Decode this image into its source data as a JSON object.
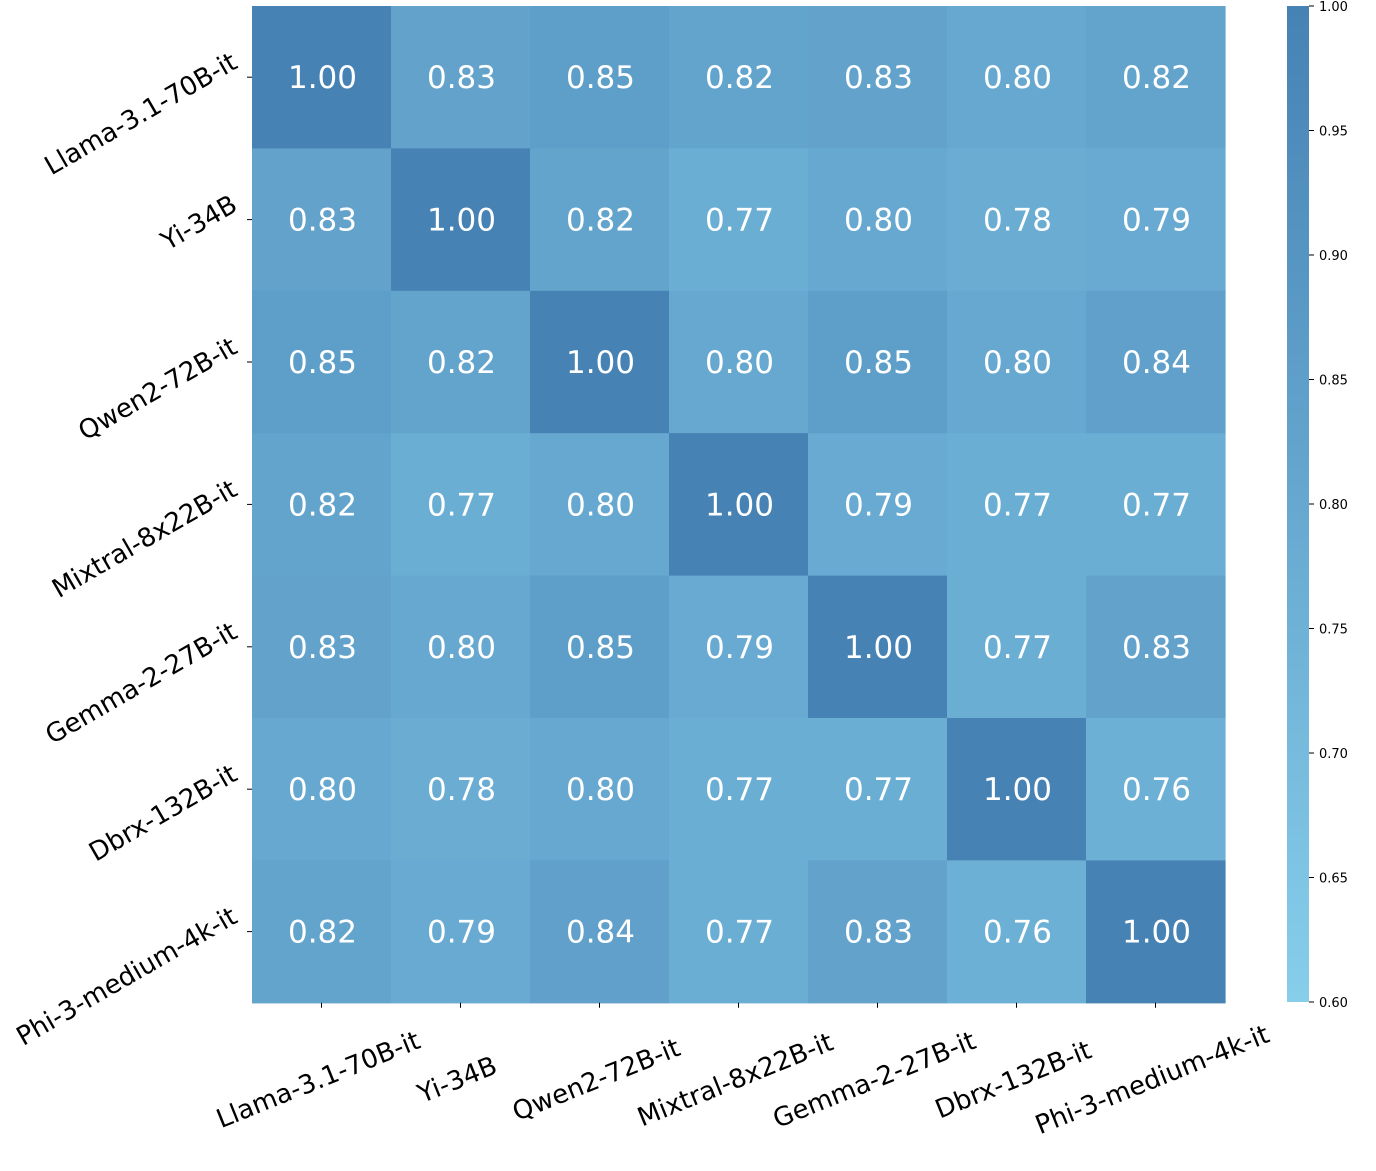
{
  "chart_data": {
    "type": "heatmap",
    "title": "",
    "xlabel": "",
    "ylabel": "",
    "row_labels": [
      "Llama-3.1-70B-it",
      "Yi-34B",
      "Qwen2-72B-it",
      "Mixtral-8x22B-it",
      "Gemma-2-27B-it",
      "Dbrx-132B-it",
      "Phi-3-medium-4k-it"
    ],
    "col_labels": [
      "Llama-3.1-70B-it",
      "Yi-34B",
      "Qwen2-72B-it",
      "Mixtral-8x22B-it",
      "Gemma-2-27B-it",
      "Dbrx-132B-it",
      "Phi-3-medium-4k-it"
    ],
    "values": [
      [
        1.0,
        0.83,
        0.85,
        0.82,
        0.83,
        0.8,
        0.82
      ],
      [
        0.83,
        1.0,
        0.82,
        0.77,
        0.8,
        0.78,
        0.79
      ],
      [
        0.85,
        0.82,
        1.0,
        0.8,
        0.85,
        0.8,
        0.84
      ],
      [
        0.82,
        0.77,
        0.8,
        1.0,
        0.79,
        0.77,
        0.77
      ],
      [
        0.83,
        0.8,
        0.85,
        0.79,
        1.0,
        0.77,
        0.83
      ],
      [
        0.8,
        0.78,
        0.8,
        0.77,
        0.77,
        1.0,
        0.76
      ],
      [
        0.82,
        0.79,
        0.84,
        0.77,
        0.83,
        0.76,
        1.0
      ]
    ],
    "value_format": "0.00",
    "colorbar": {
      "min": 0.6,
      "max": 1.0,
      "ticks": [
        "0.60",
        "0.65",
        "0.70",
        "0.75",
        "0.80",
        "0.85",
        "0.90",
        "0.95",
        "1.00"
      ],
      "color_low": "#87ceeb",
      "color_high": "#4682b4"
    },
    "annotation_color": "#ffffff"
  }
}
